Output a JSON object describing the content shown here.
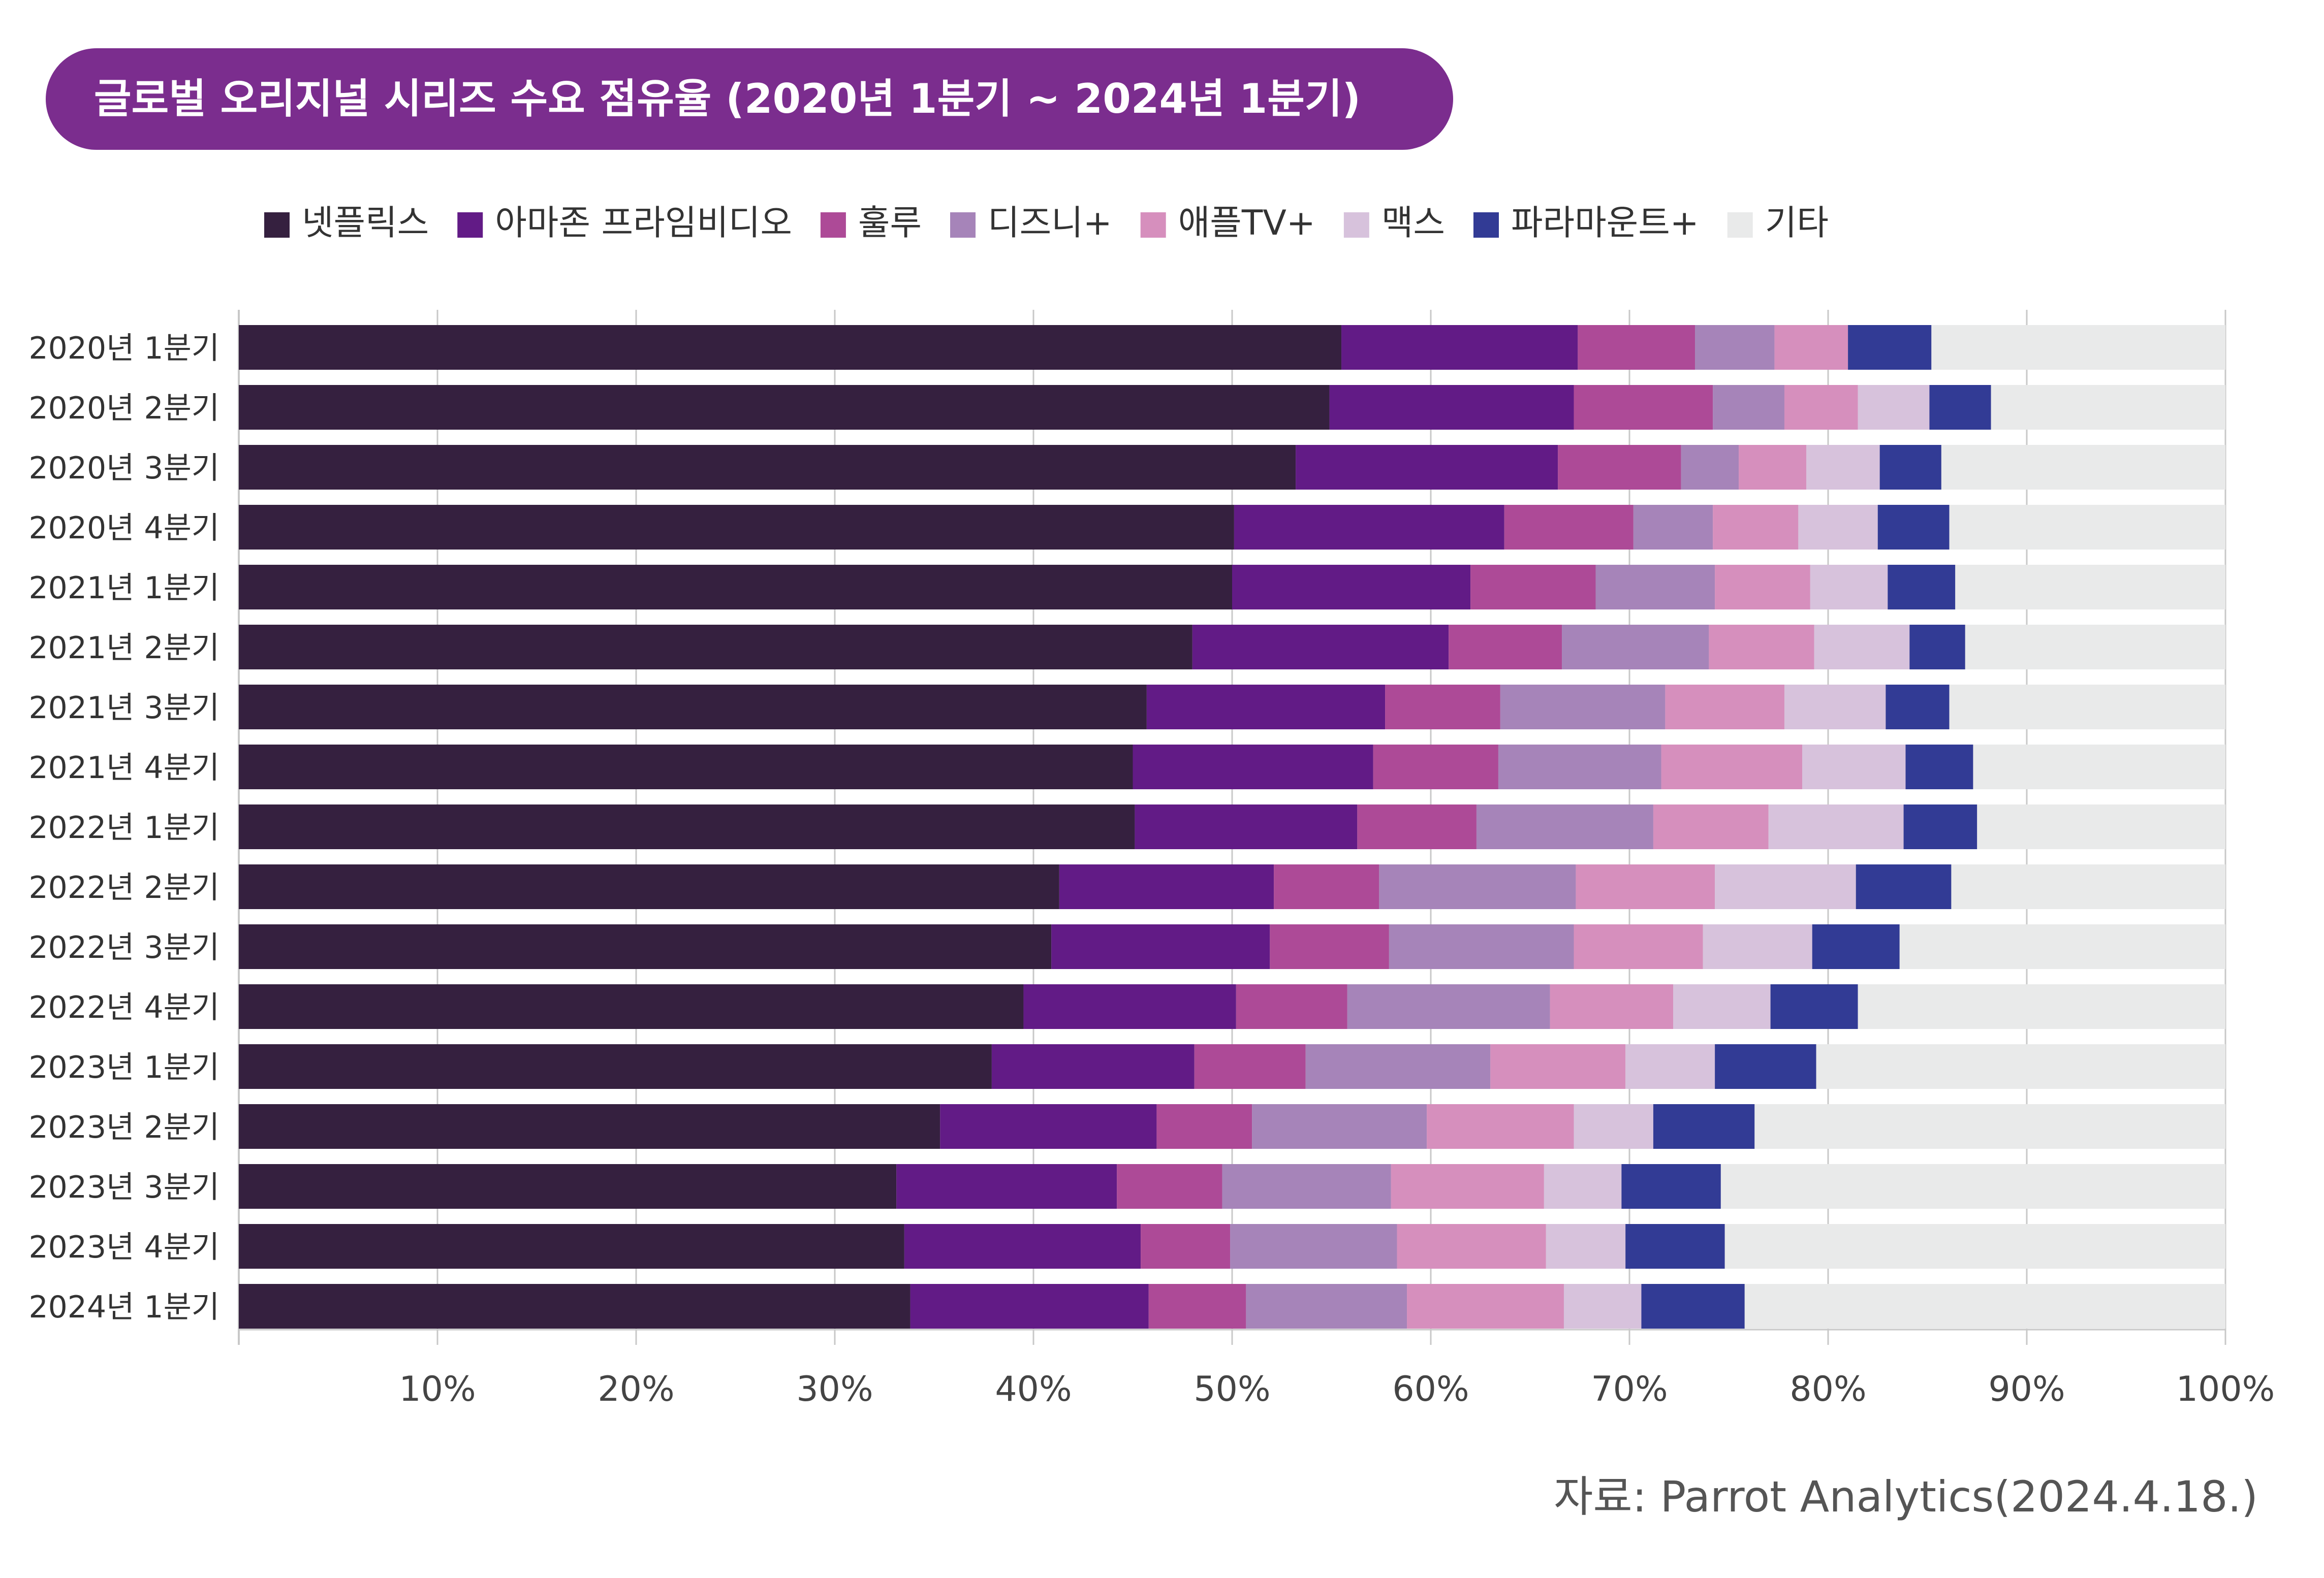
{
  "title": "글로벌 오리지널 시리즈 수요 점유율 (2020년 1분기 ~ 2024년 1분기)",
  "source": "자료: Parrot Analytics(2024.4.18.)",
  "colors": {
    "title_bg": "#7b2d8e",
    "background_bar": "#e9eaea",
    "grid": "#c8c8c8"
  },
  "chart_data": {
    "type": "bar",
    "orientation": "horizontal",
    "stacked": true,
    "title": "글로벌 오리지널 시리즈 수요 점유율 (2020년 1분기 ~ 2024년 1분기)",
    "xlim": [
      0,
      100
    ],
    "x_ticks": [
      "10%",
      "20%",
      "30%",
      "40%",
      "50%",
      "60%",
      "70%",
      "80%",
      "90%",
      "100%"
    ],
    "grid": true,
    "legend_position": "top",
    "categories": [
      "2020년 1분기",
      "2020년 2분기",
      "2020년 3분기",
      "2020년 4분기",
      "2021년 1분기",
      "2021년 2분기",
      "2021년 3분기",
      "2021년 4분기",
      "2022년 1분기",
      "2022년 2분기",
      "2022년 3분기",
      "2022년 4분기",
      "2023년 1분기",
      "2023년 2분기",
      "2023년 3분기",
      "2023년 4분기",
      "2024년 1분기"
    ],
    "series": [
      {
        "name": "넷플릭스",
        "color": "#35203f",
        "values": [
          55.5,
          54.9,
          53.2,
          50.1,
          50.0,
          48.0,
          45.7,
          45.0,
          45.1,
          41.3,
          40.9,
          39.5,
          37.9,
          35.3,
          33.1,
          33.5,
          33.8
        ]
      },
      {
        "name": "아마존 프라임비디오",
        "color": "#621b86",
        "values": [
          11.9,
          12.3,
          13.2,
          13.6,
          12.0,
          12.9,
          12.0,
          12.1,
          11.2,
          10.8,
          11.0,
          10.7,
          10.2,
          10.9,
          11.1,
          11.9,
          12.0
        ]
      },
      {
        "name": "훌루",
        "color": "#ad4a97",
        "values": [
          5.9,
          7.0,
          6.2,
          6.5,
          6.3,
          5.7,
          5.8,
          6.3,
          6.0,
          5.3,
          6.0,
          5.6,
          5.6,
          4.8,
          5.3,
          4.5,
          4.9
        ]
      },
      {
        "name": "디즈니+",
        "color": "#a684b9",
        "values": [
          4.0,
          3.6,
          2.9,
          4.0,
          6.0,
          7.4,
          8.3,
          8.2,
          8.9,
          9.9,
          9.3,
          10.2,
          9.3,
          8.8,
          8.5,
          8.4,
          8.1
        ]
      },
      {
        "name": "애플TV+",
        "color": "#d68fbd",
        "values": [
          3.7,
          3.7,
          3.4,
          4.3,
          4.8,
          5.3,
          6.0,
          7.1,
          5.8,
          7.0,
          6.5,
          6.2,
          6.8,
          7.4,
          7.7,
          7.5,
          7.9
        ]
      },
      {
        "name": "맥스",
        "color": "#d7c2dc",
        "values": [
          0,
          3.6,
          3.7,
          4.0,
          3.9,
          4.8,
          5.1,
          5.2,
          6.8,
          7.1,
          5.5,
          4.9,
          4.5,
          4.0,
          3.9,
          4.0,
          3.9
        ]
      },
      {
        "name": "파라마운트+",
        "color": "#323b95",
        "values": [
          4.2,
          3.1,
          3.1,
          3.6,
          3.4,
          2.8,
          3.2,
          3.4,
          3.7,
          4.8,
          4.4,
          4.4,
          5.1,
          5.1,
          5.0,
          5.0,
          5.2
        ]
      },
      {
        "name": "기타",
        "color": "#e9eaea",
        "values": [
          14.8,
          11.8,
          14.3,
          13.9,
          13.6,
          13.1,
          13.9,
          12.7,
          12.5,
          13.8,
          16.4,
          18.5,
          20.6,
          23.7,
          25.4,
          25.2,
          24.2
        ]
      }
    ]
  }
}
